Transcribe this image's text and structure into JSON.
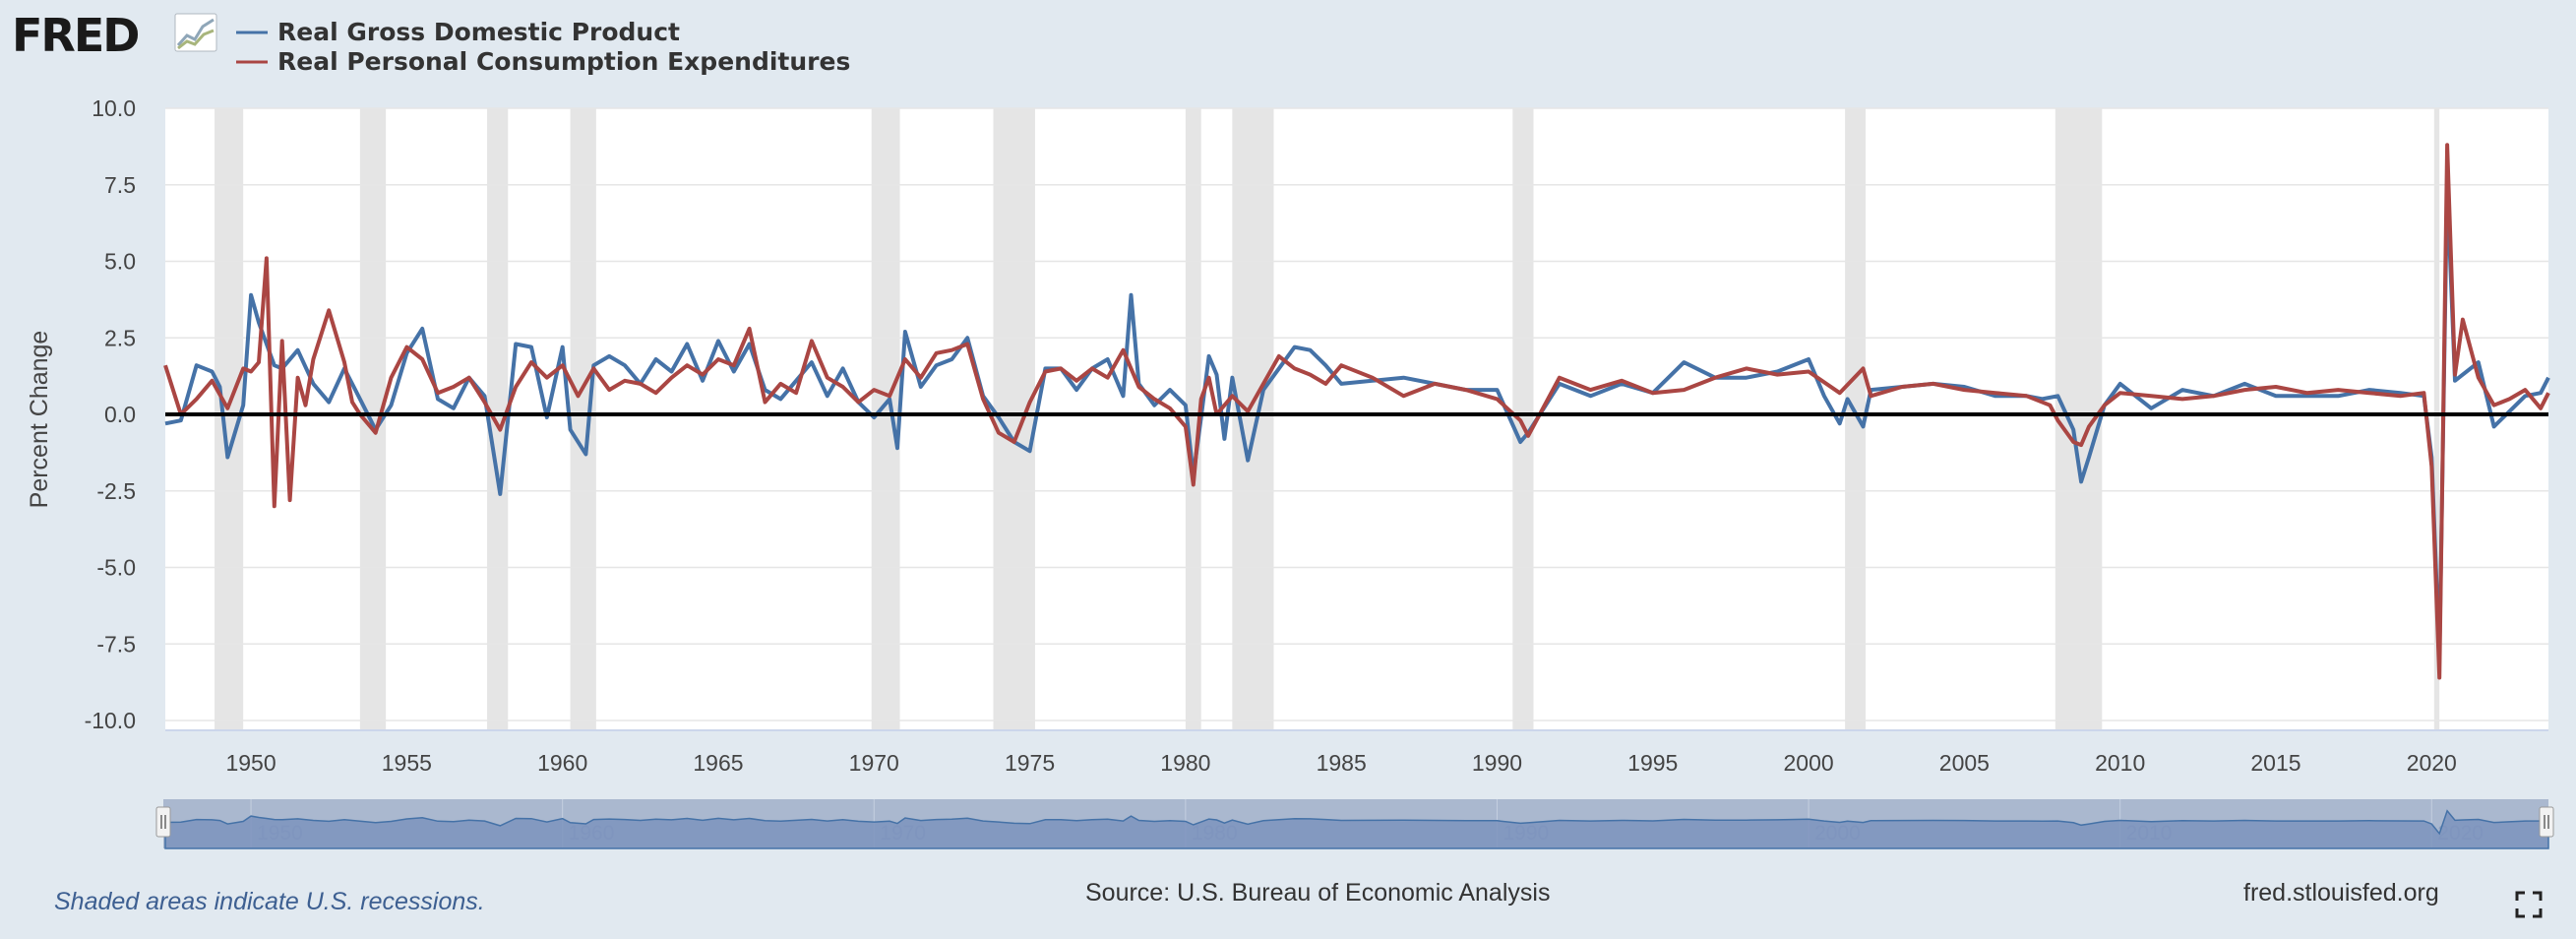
{
  "brand": {
    "logo_text": "FRED"
  },
  "footer": {
    "recession_note": "Shaded areas indicate U.S. recessions.",
    "source": "Source: U.S. Bureau of Economic Analysis",
    "site": "fred.stlouisfed.org"
  },
  "icons": {
    "fullscreen": "fullscreen-icon",
    "logo_chart": "line-chart-icon",
    "navigator_handle": "grip-icon"
  },
  "colors": {
    "gdp": "#4572a7",
    "pce": "#aa4643",
    "recession": "#e5e5e5",
    "background": "#e1e9f0"
  },
  "chart_data": {
    "type": "line",
    "ylabel": "Percent Change",
    "ylim": [
      -10,
      10
    ],
    "yticks": [
      "10.0",
      "7.5",
      "5.0",
      "2.5",
      "0.0",
      "-2.5",
      "-5.0",
      "-7.5",
      "-10.0"
    ],
    "xlim": [
      1947.25,
      2023.75
    ],
    "xticks": [
      "1950",
      "1955",
      "1960",
      "1965",
      "1970",
      "1975",
      "1980",
      "1985",
      "1990",
      "1995",
      "2000",
      "2005",
      "2010",
      "2015",
      "2020"
    ],
    "navigator_ticks": [
      "1950",
      "1960",
      "1970",
      "1980",
      "1990",
      "2000",
      "2010",
      "2020"
    ],
    "grid": true,
    "legend_placement": "top-left",
    "recessions": [
      [
        1948.83,
        1949.75
      ],
      [
        1953.5,
        1954.33
      ],
      [
        1957.58,
        1958.25
      ],
      [
        1960.25,
        1961.08
      ],
      [
        1969.92,
        1970.83
      ],
      [
        1973.83,
        1975.17
      ],
      [
        1980.0,
        1980.5
      ],
      [
        1981.5,
        1982.83
      ],
      [
        1990.5,
        1991.17
      ],
      [
        2001.17,
        2001.83
      ],
      [
        2007.92,
        2009.42
      ],
      [
        2020.08,
        2020.25
      ]
    ],
    "series": [
      {
        "name": "Real Gross Domestic Product",
        "x": [
          1947.25,
          1947.75,
          1948.25,
          1948.75,
          1949.0,
          1949.25,
          1949.75,
          1950.0,
          1950.25,
          1950.5,
          1950.75,
          1951.0,
          1951.5,
          1952.0,
          1952.5,
          1953.0,
          1953.5,
          1954.0,
          1954.5,
          1955.0,
          1955.5,
          1956.0,
          1956.5,
          1957.0,
          1957.5,
          1958.0,
          1958.5,
          1959.0,
          1959.5,
          1960.0,
          1960.25,
          1960.75,
          1961.0,
          1961.5,
          1962.0,
          1962.5,
          1963.0,
          1963.5,
          1964.0,
          1964.5,
          1965.0,
          1965.5,
          1966.0,
          1966.5,
          1967.0,
          1967.5,
          1968.0,
          1968.5,
          1969.0,
          1969.5,
          1970.0,
          1970.5,
          1970.75,
          1971.0,
          1971.5,
          1972.0,
          1972.5,
          1973.0,
          1973.5,
          1974.0,
          1974.5,
          1975.0,
          1975.5,
          1976.0,
          1976.5,
          1977.0,
          1977.5,
          1978.0,
          1978.25,
          1978.5,
          1979.0,
          1979.5,
          1980.0,
          1980.25,
          1980.5,
          1980.75,
          1981.0,
          1981.25,
          1981.5,
          1982.0,
          1982.5,
          1983.0,
          1983.5,
          1984.0,
          1984.5,
          1985.0,
          1986.0,
          1987.0,
          1988.0,
          1989.0,
          1990.0,
          1990.75,
          1991.0,
          1992.0,
          1993.0,
          1994.0,
          1995.0,
          1996.0,
          1997.0,
          1998.0,
          1999.0,
          2000.0,
          2000.5,
          2001.0,
          2001.25,
          2001.75,
          2002.0,
          2003.0,
          2004.0,
          2005.0,
          2006.0,
          2007.0,
          2007.5,
          2008.0,
          2008.5,
          2008.75,
          2009.0,
          2009.5,
          2010.0,
          2011.0,
          2012.0,
          2013.0,
          2014.0,
          2015.0,
          2016.0,
          2017.0,
          2018.0,
          2019.0,
          2019.75,
          2020.0,
          2020.25,
          2020.5,
          2020.75,
          2021.0,
          2021.5,
          2022.0,
          2022.5,
          2023.0,
          2023.5,
          2023.75
        ],
        "y": [
          -0.3,
          -0.2,
          1.6,
          1.4,
          0.9,
          -1.4,
          0.3,
          3.9,
          3.0,
          2.3,
          1.6,
          1.5,
          2.1,
          1.0,
          0.4,
          1.5,
          0.5,
          -0.5,
          0.3,
          2.0,
          2.8,
          0.5,
          0.2,
          1.2,
          0.6,
          -2.6,
          2.3,
          2.2,
          -0.1,
          2.2,
          -0.5,
          -1.3,
          1.6,
          1.9,
          1.6,
          1.0,
          1.8,
          1.4,
          2.3,
          1.1,
          2.4,
          1.4,
          2.3,
          0.8,
          0.5,
          1.1,
          1.7,
          0.6,
          1.5,
          0.4,
          -0.1,
          0.5,
          -1.1,
          2.7,
          0.9,
          1.6,
          1.8,
          2.5,
          0.6,
          -0.1,
          -0.9,
          -1.2,
          1.5,
          1.5,
          0.8,
          1.5,
          1.8,
          0.6,
          3.9,
          1.0,
          0.3,
          0.8,
          0.3,
          -2.0,
          -0.1,
          1.9,
          1.3,
          -0.8,
          1.2,
          -1.5,
          0.8,
          1.5,
          2.2,
          2.1,
          1.6,
          1.0,
          1.1,
          1.2,
          1.0,
          0.8,
          0.8,
          -0.9,
          -0.6,
          1.0,
          0.6,
          1.0,
          0.7,
          1.7,
          1.2,
          1.2,
          1.4,
          1.8,
          0.6,
          -0.3,
          0.5,
          -0.4,
          0.8,
          0.9,
          1.0,
          0.9,
          0.6,
          0.6,
          0.5,
          0.6,
          -0.5,
          -2.2,
          -1.4,
          0.3,
          1.0,
          0.2,
          0.8,
          0.6,
          1.0,
          0.6,
          0.6,
          0.6,
          0.8,
          0.7,
          0.6,
          -1.4,
          -7.9,
          7.5,
          1.1,
          1.3,
          1.7,
          -0.4,
          0.1,
          0.6,
          0.7,
          1.2
        ]
      },
      {
        "name": "Real Personal Consumption Expenditures",
        "x": [
          1947.25,
          1947.75,
          1948.25,
          1948.75,
          1949.25,
          1949.75,
          1950.0,
          1950.25,
          1950.5,
          1950.75,
          1951.0,
          1951.25,
          1951.5,
          1951.75,
          1952.0,
          1952.5,
          1953.0,
          1953.25,
          1953.5,
          1954.0,
          1954.5,
          1955.0,
          1955.5,
          1956.0,
          1956.5,
          1957.0,
          1957.5,
          1958.0,
          1958.5,
          1959.0,
          1959.5,
          1960.0,
          1960.5,
          1961.0,
          1961.5,
          1962.0,
          1962.5,
          1963.0,
          1963.5,
          1964.0,
          1964.5,
          1965.0,
          1965.5,
          1966.0,
          1966.5,
          1967.0,
          1967.5,
          1968.0,
          1968.5,
          1969.0,
          1969.5,
          1970.0,
          1970.5,
          1971.0,
          1971.5,
          1972.0,
          1972.5,
          1973.0,
          1973.5,
          1974.0,
          1974.5,
          1975.0,
          1975.5,
          1976.0,
          1976.5,
          1977.0,
          1977.5,
          1978.0,
          1978.5,
          1979.0,
          1979.5,
          1980.0,
          1980.25,
          1980.5,
          1980.75,
          1981.0,
          1981.5,
          1982.0,
          1982.5,
          1983.0,
          1983.5,
          1984.0,
          1984.5,
          1985.0,
          1986.0,
          1987.0,
          1988.0,
          1989.0,
          1990.0,
          1990.75,
          1991.0,
          1992.0,
          1993.0,
          1994.0,
          1995.0,
          1996.0,
          1997.0,
          1998.0,
          1999.0,
          2000.0,
          2001.0,
          2001.75,
          2002.0,
          2003.0,
          2004.0,
          2005.0,
          2006.0,
          2007.0,
          2007.75,
          2008.0,
          2008.5,
          2008.75,
          2009.0,
          2009.5,
          2010.0,
          2011.0,
          2012.0,
          2013.0,
          2014.0,
          2015.0,
          2016.0,
          2017.0,
          2018.0,
          2019.0,
          2019.75,
          2020.0,
          2020.25,
          2020.5,
          2020.75,
          2021.0,
          2021.5,
          2022.0,
          2022.5,
          2023.0,
          2023.5,
          2023.75
        ],
        "y": [
          1.6,
          0.0,
          0.5,
          1.1,
          0.2,
          1.5,
          1.4,
          1.7,
          5.1,
          -3.0,
          2.4,
          -2.8,
          1.2,
          0.3,
          1.8,
          3.4,
          1.7,
          0.4,
          0.0,
          -0.6,
          1.2,
          2.2,
          1.8,
          0.7,
          0.9,
          1.2,
          0.4,
          -0.5,
          0.9,
          1.7,
          1.2,
          1.6,
          0.6,
          1.5,
          0.8,
          1.1,
          1.0,
          0.7,
          1.2,
          1.6,
          1.3,
          1.8,
          1.6,
          2.8,
          0.4,
          1.0,
          0.7,
          2.4,
          1.2,
          0.9,
          0.4,
          0.8,
          0.6,
          1.8,
          1.2,
          2.0,
          2.1,
          2.3,
          0.5,
          -0.6,
          -0.9,
          0.4,
          1.4,
          1.5,
          1.1,
          1.5,
          1.2,
          2.1,
          0.9,
          0.5,
          0.2,
          -0.4,
          -2.3,
          0.5,
          1.2,
          0.0,
          0.6,
          0.1,
          1.0,
          1.9,
          1.5,
          1.3,
          1.0,
          1.6,
          1.2,
          0.6,
          1.0,
          0.8,
          0.5,
          -0.2,
          -0.7,
          1.2,
          0.8,
          1.1,
          0.7,
          0.8,
          1.2,
          1.5,
          1.3,
          1.4,
          0.7,
          1.5,
          0.6,
          0.9,
          1.0,
          0.8,
          0.7,
          0.6,
          0.3,
          -0.2,
          -0.9,
          -1.0,
          -0.4,
          0.3,
          0.7,
          0.6,
          0.5,
          0.6,
          0.8,
          0.9,
          0.7,
          0.8,
          0.7,
          0.6,
          0.7,
          -1.7,
          -8.6,
          8.8,
          1.3,
          3.1,
          1.2,
          0.3,
          0.5,
          0.8,
          0.2,
          0.7
        ]
      }
    ]
  }
}
